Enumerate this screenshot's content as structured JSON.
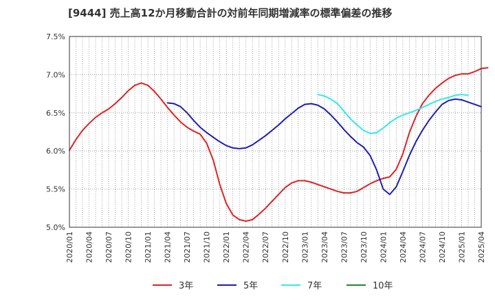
{
  "chart_data": {
    "type": "line",
    "title": "[9444]  売上高12か月移動合計の対前年同期増減率の標準偏差の推移",
    "xlabel": "",
    "ylabel": "",
    "ylim": [
      5.0,
      7.5
    ],
    "y_ticks": [
      5.0,
      5.5,
      6.0,
      6.5,
      7.0,
      7.5
    ],
    "y_tick_labels": [
      "5.0%",
      "5.5%",
      "6.0%",
      "6.5%",
      "7.0%",
      "7.5%"
    ],
    "x_start": "2020-01",
    "x_end": "2025-04",
    "x_tick_labels": [
      "2020/01",
      "2020/04",
      "2020/07",
      "2020/10",
      "2021/01",
      "2021/04",
      "2021/07",
      "2021/10",
      "2022/01",
      "2022/04",
      "2022/07",
      "2022/10",
      "2023/01",
      "2023/04",
      "2023/07",
      "2023/10",
      "2024/01",
      "2024/04",
      "2024/07",
      "2024/10",
      "2025/01",
      "2025/04"
    ],
    "grid": true,
    "legend_position": "bottom",
    "series": [
      {
        "name": "3年",
        "color": "#dd2222",
        "start": "2020-01",
        "values": [
          6.01,
          6.15,
          6.27,
          6.36,
          6.44,
          6.5,
          6.55,
          6.62,
          6.7,
          6.79,
          6.86,
          6.89,
          6.86,
          6.78,
          6.68,
          6.57,
          6.47,
          6.38,
          6.31,
          6.26,
          6.22,
          6.1,
          5.88,
          5.56,
          5.31,
          5.16,
          5.1,
          5.08,
          5.1,
          5.17,
          5.25,
          5.34,
          5.43,
          5.52,
          5.58,
          5.61,
          5.61,
          5.59,
          5.56,
          5.53,
          5.5,
          5.47,
          5.45,
          5.45,
          5.47,
          5.52,
          5.57,
          5.61,
          5.64,
          5.66,
          5.76,
          5.96,
          6.24,
          6.45,
          6.62,
          6.73,
          6.82,
          6.89,
          6.95,
          6.99,
          7.01,
          7.01,
          7.04,
          7.08,
          7.09
        ]
      },
      {
        "name": "5年",
        "color": "#1c1cb4",
        "start": "2021-04",
        "values": [
          6.63,
          6.62,
          6.58,
          6.5,
          6.4,
          6.31,
          6.24,
          6.18,
          6.12,
          6.07,
          6.04,
          6.03,
          6.04,
          6.08,
          6.14,
          6.2,
          6.27,
          6.34,
          6.42,
          6.49,
          6.56,
          6.61,
          6.62,
          6.6,
          6.55,
          6.47,
          6.38,
          6.28,
          6.19,
          6.11,
          6.05,
          5.94,
          5.75,
          5.5,
          5.43,
          5.53,
          5.73,
          5.94,
          6.12,
          6.27,
          6.4,
          6.51,
          6.61,
          6.66,
          6.68,
          6.67,
          6.64,
          6.61,
          6.58
        ]
      },
      {
        "name": "7年",
        "color": "#33e8e8",
        "start": "2023-03",
        "values": [
          6.74,
          6.72,
          6.68,
          6.62,
          6.52,
          6.42,
          6.34,
          6.27,
          6.23,
          6.24,
          6.3,
          6.37,
          6.43,
          6.47,
          6.5,
          6.53,
          6.57,
          6.61,
          6.65,
          6.68,
          6.7,
          6.73,
          6.74,
          6.73
        ]
      },
      {
        "name": "10年",
        "color": "#228822",
        "start": "2025-01",
        "values": []
      }
    ]
  }
}
